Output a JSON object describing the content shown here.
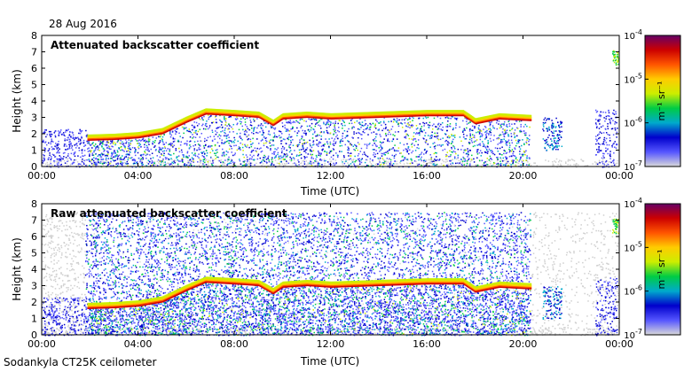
{
  "date_label": "28 Aug 2016",
  "footer_label": "Sodankyla CT25K ceilometer",
  "colorbar": {
    "unit_label": "m⁻¹ sr⁻¹",
    "ticks": [
      "10^-7",
      "10^-6",
      "10^-5",
      "10^-4"
    ],
    "tick_exponents": [
      -7,
      -6,
      -5,
      -4
    ],
    "scale": "log",
    "colors": [
      "#d9d9d9",
      "#5555ff",
      "#0000cc",
      "#00aacc",
      "#00cc44",
      "#ccee00",
      "#ffcc00",
      "#ff5500",
      "#cc0000",
      "#660066"
    ]
  },
  "chart_data": [
    {
      "type": "heatmap",
      "title": "Attenuated backscatter coefficient",
      "xlabel": "Time (UTC)",
      "ylabel": "Height (km)",
      "x_ticks": [
        "00:00",
        "04:00",
        "08:00",
        "12:00",
        "16:00",
        "20:00",
        "00:00"
      ],
      "y_ticks": [
        0,
        1,
        2,
        3,
        4,
        5,
        6,
        7,
        8
      ],
      "ylim": [
        0,
        8
      ],
      "xlim_hours": [
        0,
        24
      ],
      "cloud_layer": {
        "time_h": [
          1.9,
          3.0,
          4.0,
          5.0,
          6.0,
          6.8,
          8.0,
          9.0,
          9.6,
          10.0,
          11.0,
          12.0,
          14.0,
          16.0,
          17.5,
          18.0,
          19.0,
          20.3
        ],
        "height_km": [
          1.6,
          1.65,
          1.75,
          2.0,
          2.7,
          3.2,
          3.1,
          3.0,
          2.5,
          2.9,
          3.0,
          2.9,
          3.0,
          3.1,
          3.1,
          2.6,
          2.9,
          2.8
        ]
      }
    },
    {
      "type": "heatmap",
      "title": "Raw attenuated backscatter coefficient",
      "xlabel": "Time (UTC)",
      "ylabel": "Height (km)",
      "x_ticks": [
        "00:00",
        "04:00",
        "08:00",
        "12:00",
        "16:00",
        "20:00",
        "00:00"
      ],
      "y_ticks": [
        0,
        1,
        2,
        3,
        4,
        5,
        6,
        7,
        8
      ],
      "ylim": [
        0,
        8
      ],
      "xlim_hours": [
        0,
        24
      ],
      "noise_top_km": 7.5,
      "cloud_layer": {
        "time_h": [
          1.9,
          3.0,
          4.0,
          5.0,
          6.0,
          6.8,
          8.0,
          9.0,
          9.6,
          10.0,
          11.0,
          12.0,
          14.0,
          16.0,
          17.5,
          18.0,
          19.0,
          20.3
        ],
        "height_km": [
          1.6,
          1.65,
          1.75,
          2.0,
          2.7,
          3.2,
          3.1,
          3.0,
          2.5,
          2.9,
          3.0,
          2.9,
          3.0,
          3.1,
          3.1,
          2.6,
          2.9,
          2.8
        ]
      }
    }
  ]
}
